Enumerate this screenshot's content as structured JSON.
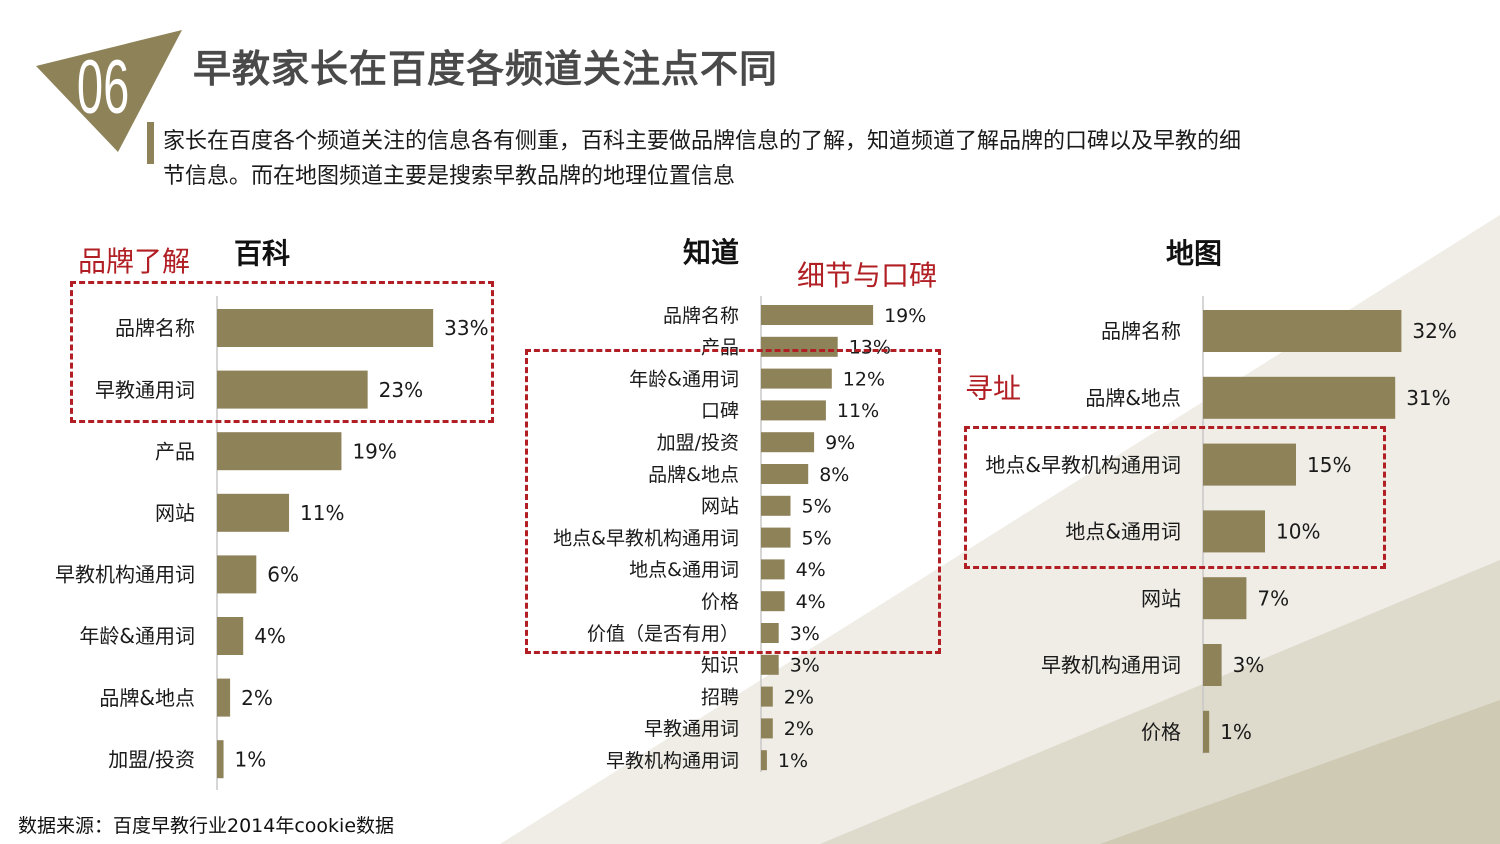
{
  "header": {
    "section_number": "06",
    "title": "早教家长在百度各频道关注点不同",
    "subtitle_line1": "家长在百度各个频道关注的信息各有侧重，百科主要做品牌信息的了解，知道频道了解品牌的口碑以及早教的细",
    "subtitle_line2": "节信息。而在地图频道主要是搜索早教品牌的地理位置信息"
  },
  "annotations": {
    "baike": "品牌了解",
    "zhidao": "细节与口碑",
    "ditu": "寻址"
  },
  "source": "数据来源：百度早教行业2014年cookie数据",
  "colors": {
    "bar": "#8e8259",
    "accent": "#b11f24",
    "badge": "#8e8259"
  },
  "chart_data": [
    {
      "type": "bar",
      "orientation": "horizontal",
      "title": "百科",
      "categories": [
        "品牌名称",
        "早教通用词",
        "产品",
        "网站",
        "早教机构通用词",
        "年龄&通用词",
        "品牌&地点",
        "加盟/投资"
      ],
      "values": [
        33,
        23,
        19,
        11,
        6,
        4,
        2,
        1
      ],
      "labels": [
        "33%",
        "23%",
        "19%",
        "11%",
        "6%",
        "4%",
        "2%",
        "1%"
      ],
      "unit": "%"
    },
    {
      "type": "bar",
      "orientation": "horizontal",
      "title": "知道",
      "categories": [
        "品牌名称",
        "产品",
        "年龄&通用词",
        "口碑",
        "加盟/投资",
        "品牌&地点",
        "网站",
        "地点&早教机构通用词",
        "地点&通用词",
        "价格",
        "价值（是否有用）",
        "知识",
        "招聘",
        "早教通用词",
        "早教机构通用词"
      ],
      "values": [
        19,
        13,
        12,
        11,
        9,
        8,
        5,
        5,
        4,
        4,
        3,
        3,
        2,
        2,
        1
      ],
      "labels": [
        "19%",
        "13%",
        "12%",
        "11%",
        "9%",
        "8%",
        "5%",
        "5%",
        "4%",
        "4%",
        "3%",
        "3%",
        "2%",
        "2%",
        "1%"
      ],
      "unit": "%"
    },
    {
      "type": "bar",
      "orientation": "horizontal",
      "title": "地图",
      "categories": [
        "品牌名称",
        "品牌&地点",
        "地点&早教机构通用词",
        "地点&通用词",
        "网站",
        "早教机构通用词",
        "价格"
      ],
      "values": [
        32,
        31,
        15,
        10,
        7,
        3,
        1
      ],
      "labels": [
        "32%",
        "31%",
        "15%",
        "10%",
        "7%",
        "3%",
        "1%"
      ],
      "unit": "%"
    }
  ]
}
